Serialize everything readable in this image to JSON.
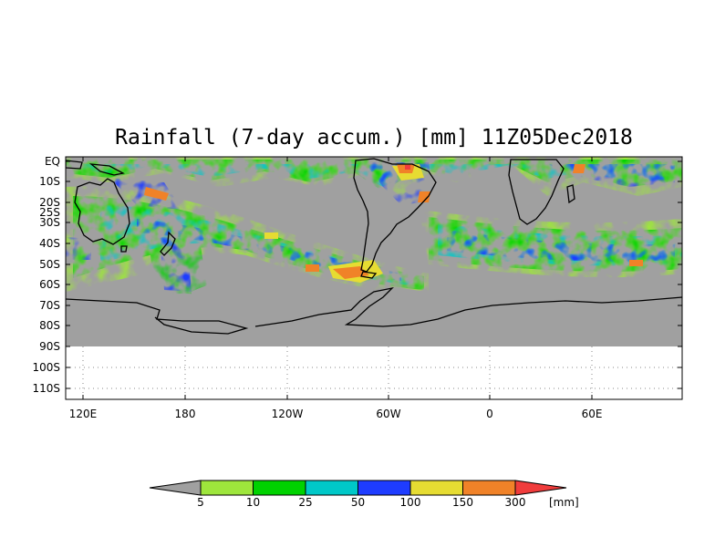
{
  "title": "Rainfall (7-day accum.) [mm] 11Z05Dec2018",
  "lat_labels": [
    "EQ",
    "10S",
    "20S",
    "25S",
    "30S",
    "40S",
    "50S",
    "60S",
    "70S",
    "80S",
    "90S",
    "100S",
    "110S"
  ],
  "lon_labels": [
    "120E",
    "180",
    "120W",
    "60W",
    "0",
    "60E"
  ],
  "legend": {
    "unit": "[mm]",
    "thresholds": [
      "5",
      "10",
      "25",
      "50",
      "100",
      "150",
      "300"
    ],
    "colors": [
      "#a0a0a0",
      "#9ee63c",
      "#00d200",
      "#00c8c8",
      "#1e3cff",
      "#e6dc32",
      "#f08228",
      "#f03c3c"
    ]
  },
  "colors": {
    "no_data": "#a0a0a0",
    "background": "#ffffff"
  }
}
